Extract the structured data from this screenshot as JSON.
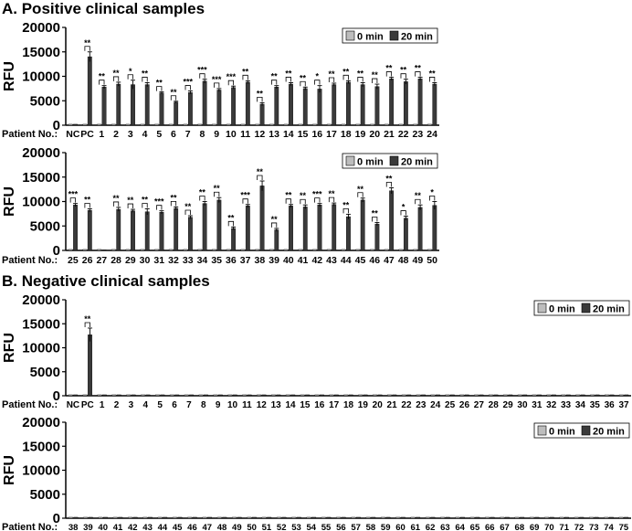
{
  "titles": {
    "a": "A. Positive clinical samples",
    "b": "B. Negative clinical samples"
  },
  "colors": {
    "bar_0min": "#bdbdbd",
    "bar_20min": "#3a3a3a",
    "axis": "#000000"
  },
  "chart_data": [
    {
      "type": "bar",
      "ylabel": "RFU",
      "xlabel": "Patient No.:",
      "ylim": [
        0,
        20000
      ],
      "yticks": [
        0,
        5000,
        10000,
        15000,
        20000
      ],
      "legend": [
        "0 min",
        "20 min"
      ],
      "legend_position": "top-right",
      "categories": [
        "NC",
        "PC",
        "1",
        "2",
        "3",
        "4",
        "5",
        "6",
        "7",
        "8",
        "9",
        "10",
        "11",
        "12",
        "13",
        "14",
        "15",
        "16",
        "17",
        "18",
        "19",
        "20",
        "21",
        "22",
        "23",
        "24"
      ],
      "series": [
        {
          "name": "0 min",
          "values": [
            200,
            200,
            200,
            200,
            200,
            200,
            200,
            200,
            200,
            200,
            200,
            200,
            200,
            200,
            200,
            200,
            200,
            200,
            200,
            200,
            200,
            200,
            200,
            200,
            200,
            200
          ]
        },
        {
          "name": "20 min",
          "values": [
            200,
            14000,
            7800,
            8400,
            8300,
            8300,
            6600,
            4700,
            6700,
            9000,
            7200,
            7700,
            8800,
            4300,
            7800,
            8400,
            7500,
            7400,
            8300,
            8800,
            8300,
            7900,
            9500,
            8900,
            9500,
            8400
          ]
        }
      ],
      "errors": [
        0,
        1000,
        300,
        400,
        900,
        400,
        200,
        200,
        300,
        400,
        300,
        300,
        300,
        300,
        300,
        300,
        300,
        700,
        300,
        300,
        400,
        500,
        300,
        500,
        300,
        300
      ],
      "significance": [
        "",
        "**",
        "**",
        "**",
        "*",
        "**",
        "**",
        "**",
        "***",
        "***",
        "***",
        "***",
        "**",
        "**",
        "**",
        "**",
        "**",
        "*",
        "**",
        "**",
        "**",
        "**",
        "**",
        "**",
        "**",
        "**"
      ]
    },
    {
      "type": "bar",
      "ylabel": "RFU",
      "xlabel": "Patient No.:",
      "ylim": [
        0,
        20000
      ],
      "yticks": [
        0,
        5000,
        10000,
        15000,
        20000
      ],
      "legend": [
        "0 min",
        "20 min"
      ],
      "legend_position": "top-right",
      "categories": [
        "25",
        "26",
        "27",
        "28",
        "29",
        "30",
        "31",
        "32",
        "33",
        "34",
        "35",
        "36",
        "37",
        "38",
        "39",
        "40",
        "41",
        "42",
        "43",
        "44",
        "45",
        "46",
        "47",
        "48",
        "49",
        "50"
      ],
      "series": [
        {
          "name": "0 min",
          "values": [
            200,
            200,
            200,
            200,
            200,
            200,
            200,
            200,
            200,
            200,
            200,
            200,
            200,
            200,
            200,
            200,
            200,
            200,
            200,
            200,
            200,
            200,
            200,
            200,
            200,
            200
          ]
        },
        {
          "name": "20 min",
          "values": [
            9300,
            8200,
            100,
            8400,
            8100,
            7900,
            7800,
            8600,
            6800,
            9600,
            10300,
            4500,
            9100,
            13200,
            4200,
            9100,
            8900,
            9300,
            9400,
            6900,
            10300,
            5400,
            12200,
            6600,
            8800,
            9200
          ]
        }
      ],
      "errors": [
        300,
        300,
        0,
        400,
        300,
        600,
        300,
        300,
        300,
        400,
        500,
        300,
        300,
        1000,
        300,
        300,
        400,
        300,
        300,
        500,
        400,
        300,
        600,
        400,
        500,
        800
      ],
      "significance": [
        "***",
        "**",
        "",
        "**",
        "**",
        "**",
        "***",
        "**",
        "**",
        "**",
        "**",
        "**",
        "***",
        "**",
        "**",
        "**",
        "**",
        "***",
        "**",
        "**",
        "**",
        "**",
        "**",
        "*",
        "**",
        "*"
      ]
    },
    {
      "type": "bar",
      "ylabel": "RFU",
      "xlabel": "Patient No.:",
      "ylim": [
        0,
        20000
      ],
      "yticks": [
        0,
        5000,
        10000,
        15000,
        20000
      ],
      "legend": [
        "0 min",
        "20 min"
      ],
      "legend_position": "top-right",
      "categories": [
        "NC",
        "PC",
        "1",
        "2",
        "3",
        "4",
        "5",
        "6",
        "7",
        "8",
        "9",
        "10",
        "11",
        "12",
        "13",
        "14",
        "15",
        "16",
        "17",
        "18",
        "19",
        "20",
        "21",
        "22",
        "23",
        "24",
        "25",
        "26",
        "27",
        "28",
        "29",
        "30",
        "31",
        "32",
        "33",
        "34",
        "35",
        "36",
        "37"
      ],
      "series": [
        {
          "name": "0 min",
          "values": [
            200,
            200,
            200,
            200,
            200,
            200,
            200,
            200,
            200,
            200,
            200,
            200,
            200,
            200,
            200,
            200,
            200,
            200,
            200,
            200,
            200,
            200,
            200,
            200,
            200,
            200,
            200,
            200,
            200,
            200,
            200,
            200,
            200,
            200,
            200,
            200,
            200,
            200,
            200
          ]
        },
        {
          "name": "20 min",
          "values": [
            200,
            12700,
            200,
            200,
            200,
            200,
            200,
            200,
            200,
            200,
            200,
            200,
            200,
            200,
            200,
            200,
            200,
            200,
            200,
            200,
            200,
            200,
            200,
            200,
            200,
            200,
            200,
            200,
            200,
            200,
            200,
            200,
            200,
            200,
            200,
            200,
            200,
            200,
            200
          ]
        }
      ],
      "errors": [
        0,
        1400,
        0,
        0,
        0,
        0,
        0,
        0,
        0,
        0,
        0,
        0,
        0,
        0,
        0,
        0,
        0,
        0,
        0,
        0,
        0,
        0,
        0,
        0,
        0,
        0,
        0,
        0,
        0,
        0,
        0,
        0,
        0,
        0,
        0,
        0,
        0,
        0,
        0
      ],
      "significance": [
        "",
        "**",
        "",
        "",
        "",
        "",
        "",
        "",
        "",
        "",
        "",
        "",
        "",
        "",
        "",
        "",
        "",
        "",
        "",
        "",
        "",
        "",
        "",
        "",
        "",
        "",
        "",
        "",
        "",
        "",
        "",
        "",
        "",
        "",
        "",
        "",
        "",
        "",
        ""
      ]
    },
    {
      "type": "bar",
      "ylabel": "RFU",
      "xlabel": "Patient No.:",
      "ylim": [
        0,
        20000
      ],
      "yticks": [
        0,
        5000,
        10000,
        15000,
        20000
      ],
      "legend": [
        "0 min",
        "20 min"
      ],
      "legend_position": "top-right",
      "categories": [
        "38",
        "39",
        "40",
        "41",
        "42",
        "43",
        "44",
        "45",
        "46",
        "47",
        "48",
        "49",
        "50",
        "51",
        "52",
        "53",
        "54",
        "55",
        "56",
        "57",
        "58",
        "59",
        "60",
        "61",
        "62",
        "63",
        "64",
        "65",
        "66",
        "67",
        "68",
        "69",
        "70",
        "71",
        "72",
        "73",
        "74",
        "75"
      ],
      "series": [
        {
          "name": "0 min",
          "values": [
            200,
            200,
            200,
            200,
            200,
            200,
            200,
            200,
            200,
            200,
            200,
            200,
            200,
            200,
            200,
            200,
            200,
            200,
            200,
            200,
            200,
            200,
            200,
            200,
            200,
            200,
            200,
            200,
            200,
            200,
            200,
            200,
            200,
            200,
            200,
            200,
            200,
            200
          ]
        },
        {
          "name": "20 min",
          "values": [
            200,
            200,
            200,
            200,
            200,
            200,
            200,
            200,
            200,
            200,
            200,
            200,
            200,
            200,
            200,
            200,
            200,
            200,
            200,
            200,
            200,
            200,
            200,
            200,
            200,
            200,
            200,
            200,
            200,
            200,
            200,
            200,
            200,
            200,
            200,
            200,
            200,
            200
          ]
        }
      ],
      "errors": [
        0,
        0,
        0,
        0,
        0,
        0,
        0,
        0,
        0,
        0,
        0,
        0,
        0,
        0,
        0,
        0,
        0,
        0,
        0,
        0,
        0,
        0,
        0,
        0,
        0,
        0,
        0,
        0,
        0,
        0,
        0,
        0,
        0,
        0,
        0,
        0,
        0,
        0
      ],
      "significance": [
        "",
        "",
        "",
        "",
        "",
        "",
        "",
        "",
        "",
        "",
        "",
        "",
        "",
        "",
        "",
        "",
        "",
        "",
        "",
        "",
        "",
        "",
        "",
        "",
        "",
        "",
        "",
        "",
        "",
        "",
        "",
        "",
        "",
        "",
        "",
        "",
        "",
        ""
      ]
    }
  ]
}
